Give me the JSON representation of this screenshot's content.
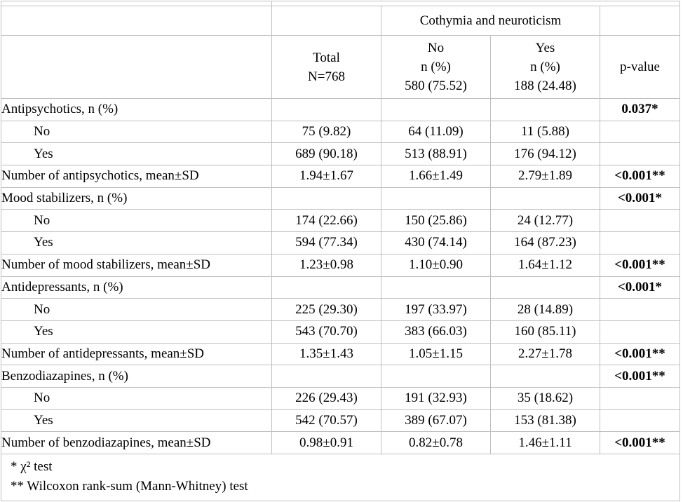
{
  "table": {
    "group_header": "Cothymia and neuroticism",
    "header": {
      "total": "Total\nN=768",
      "no": "No\nn (%)\n580 (75.52)",
      "yes": "Yes\nn (%)\n188 (24.48)",
      "p_value": "p-value"
    },
    "rows": [
      {
        "label": "Antipsychotics, n (%)",
        "indent": false,
        "total": "",
        "no": "",
        "yes": "",
        "p": "0.037*"
      },
      {
        "label": "No",
        "indent": true,
        "total": "75 (9.82)",
        "no": "64 (11.09)",
        "yes": "11 (5.88)",
        "p": ""
      },
      {
        "label": "Yes",
        "indent": true,
        "total": "689 (90.18)",
        "no": "513 (88.91)",
        "yes": "176 (94.12)",
        "p": ""
      },
      {
        "label": "Number of antipsychotics, mean±SD",
        "indent": false,
        "total": "1.94±1.67",
        "no": "1.66±1.49",
        "yes": "2.79±1.89",
        "p": "<0.001**"
      },
      {
        "label": "Mood stabilizers, n (%)",
        "indent": false,
        "total": "",
        "no": "",
        "yes": "",
        "p": "<0.001*"
      },
      {
        "label": "No",
        "indent": true,
        "total": "174 (22.66)",
        "no": "150 (25.86)",
        "yes": "24 (12.77)",
        "p": ""
      },
      {
        "label": "Yes",
        "indent": true,
        "total": "594 (77.34)",
        "no": "430 (74.14)",
        "yes": "164 (87.23)",
        "p": ""
      },
      {
        "label": "Number of mood stabilizers, mean±SD",
        "indent": false,
        "total": "1.23±0.98",
        "no": "1.10±0.90",
        "yes": "1.64±1.12",
        "p": "<0.001**"
      },
      {
        "label": "Antidepressants, n (%)",
        "indent": false,
        "total": "",
        "no": "",
        "yes": "",
        "p": "<0.001*"
      },
      {
        "label": "No",
        "indent": true,
        "total": "225 (29.30)",
        "no": "197 (33.97)",
        "yes": "28 (14.89)",
        "p": ""
      },
      {
        "label": "Yes",
        "indent": true,
        "total": "543 (70.70)",
        "no": "383 (66.03)",
        "yes": "160 (85.11)",
        "p": ""
      },
      {
        "label": "Number of antidepressants, mean±SD",
        "indent": false,
        "total": "1.35±1.43",
        "no": "1.05±1.15",
        "yes": "2.27±1.78",
        "p": "<0.001**"
      },
      {
        "label": "Benzodiazapines, n (%)",
        "indent": false,
        "total": "",
        "no": "",
        "yes": "",
        "p": "<0.001**"
      },
      {
        "label": "No",
        "indent": true,
        "total": "226 (29.43)",
        "no": "191 (32.93)",
        "yes": "35 (18.62)",
        "p": ""
      },
      {
        "label": "Yes",
        "indent": true,
        "total": "542 (70.57)",
        "no": "389 (67.07)",
        "yes": "153 (81.38)",
        "p": ""
      },
      {
        "label": "Number of benzodiazapines, mean±SD",
        "indent": false,
        "total": "0.98±0.91",
        "no": "0.82±0.78",
        "yes": "1.46±1.11",
        "p": "<0.001**"
      }
    ],
    "footnotes": [
      "* χ² test",
      "** Wilcoxon rank-sum (Mann-Whitney) test"
    ],
    "colors": {
      "border": "#bfbfbf",
      "text": "#000000",
      "background": "#ffffff"
    }
  }
}
